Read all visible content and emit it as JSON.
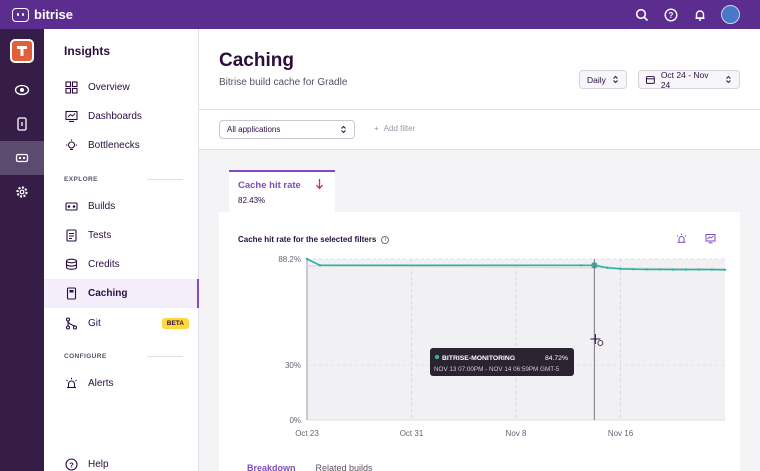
{
  "topbar": {
    "brand": "bitrise",
    "icons": [
      "search-icon",
      "help-icon",
      "bell-icon",
      "avatar"
    ],
    "accent": "#5b2d8e"
  },
  "rail": {
    "items": [
      "logo",
      "insights-eye-icon",
      "device-icon",
      "cache-icon",
      "settings-icon"
    ]
  },
  "sidebar": {
    "title": "Insights",
    "top_items": [
      {
        "label": "Overview",
        "icon": "overview-icon"
      },
      {
        "label": "Dashboards",
        "icon": "dashboards-icon"
      },
      {
        "label": "Bottlenecks",
        "icon": "bulb-icon"
      }
    ],
    "explore_label": "EXPLORE",
    "explore_items": [
      {
        "label": "Builds",
        "icon": "builds-icon"
      },
      {
        "label": "Tests",
        "icon": "tests-icon"
      },
      {
        "label": "Credits",
        "icon": "credits-icon"
      },
      {
        "label": "Caching",
        "icon": "caching-icon",
        "active": true
      },
      {
        "label": "Git",
        "icon": "git-icon",
        "badge": "BETA"
      }
    ],
    "configure_label": "CONFIGURE",
    "configure_items": [
      {
        "label": "Alerts",
        "icon": "alerts-icon"
      }
    ],
    "help_label": "Help"
  },
  "header": {
    "title": "Caching",
    "subtitle": "Bitrise build cache for Gradle",
    "interval": "Daily",
    "date_range": "Oct 24 - Nov 24"
  },
  "filters": {
    "app_select": "All applications",
    "add_filter": "Add filter"
  },
  "metric_tab": {
    "label": "Cache hit rate",
    "value": "82.43%",
    "trend": "down",
    "accent": "#7f4bbf"
  },
  "chart_card": {
    "title": "Cache hit rate for the selected filters",
    "bottom_tabs": {
      "breakdown": "Breakdown",
      "related": "Related builds"
    }
  },
  "tooltip": {
    "series": "BITRISE-MONITORING",
    "value": "84.72%",
    "range": "NOV 13 07:00PM - NOV 14 06:59PM GMT-5"
  },
  "chart_data": {
    "type": "line",
    "ylabel": "",
    "xlabel": "",
    "y_ticks": [
      "88.2%",
      "30%",
      "0%"
    ],
    "ylim": [
      0,
      88.2
    ],
    "x_ticks": [
      "Oct 23",
      "Oct 31",
      "Nov 8",
      "Nov 16"
    ],
    "x": [
      "Oct 23",
      "Oct 24",
      "Nov 13",
      "Nov 14",
      "Nov 15",
      "Nov 16",
      "Nov 17",
      "Nov 18",
      "Nov 19",
      "Nov 20",
      "Nov 21",
      "Nov 22",
      "Nov 23",
      "Nov 24"
    ],
    "values": [
      88.2,
      84.72,
      84.72,
      84.72,
      83.4,
      82.8,
      82.6,
      82.5,
      82.5,
      82.4,
      82.4,
      82.43,
      82.4,
      82.3
    ],
    "color": "#2ab3a3",
    "highlight_index": 3,
    "grid": true
  }
}
